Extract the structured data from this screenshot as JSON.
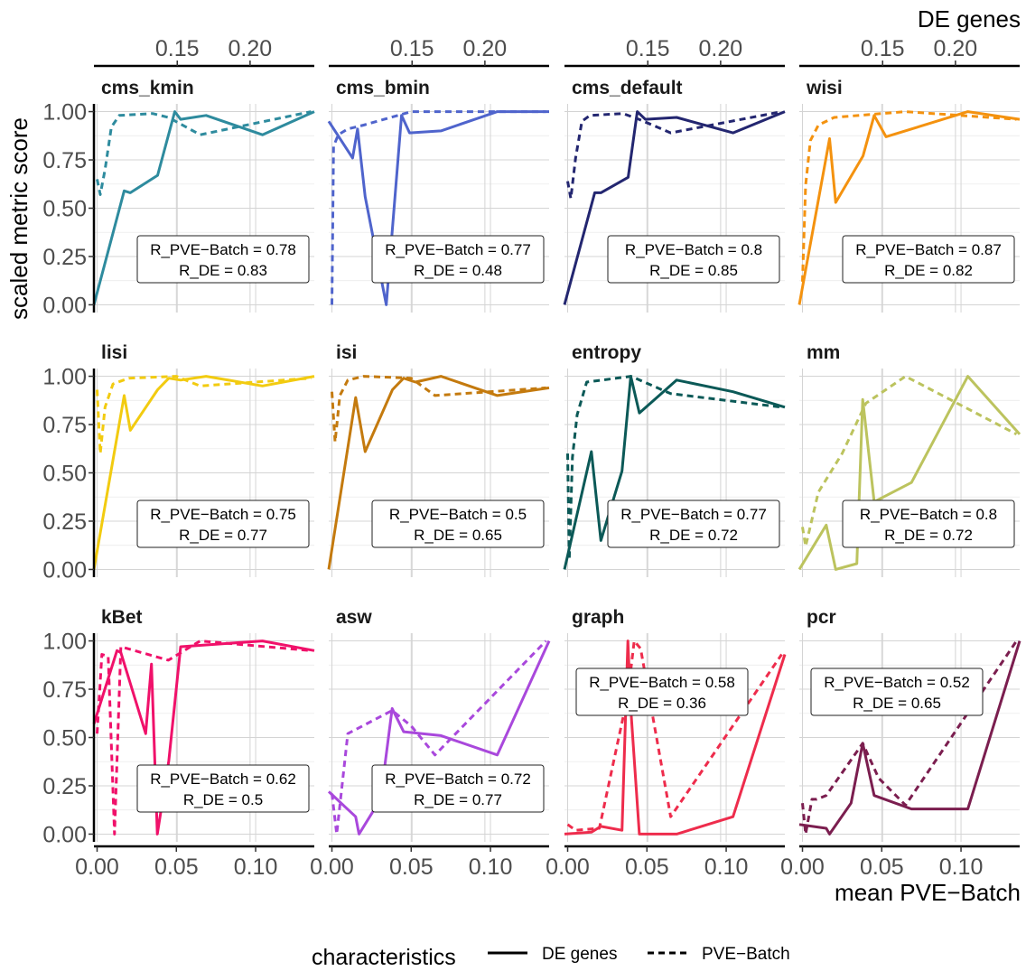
{
  "chart_data": {
    "type": "line",
    "x_axis": {
      "title": "mean PVE−Batch",
      "ticks": [
        0.0,
        0.05,
        0.1
      ],
      "tick_labels": [
        "0.00",
        "0.05",
        "0.10"
      ],
      "range": [
        -0.002,
        0.137
      ]
    },
    "x2_axis": {
      "title": "DE genes",
      "ticks": [
        0.15,
        0.2
      ],
      "tick_labels": [
        "0.15",
        "0.20"
      ],
      "range": [
        0.0928,
        0.2441
      ]
    },
    "y_axis": {
      "title": "scaled metric score",
      "ticks": [
        0,
        0.25,
        0.5,
        0.75,
        1
      ],
      "tick_labels": [
        "0.00",
        "0.25",
        "0.50",
        "0.75",
        "1.00"
      ],
      "range": [
        -0.04,
        1.04
      ]
    },
    "legend": {
      "title": "characteristics",
      "position": "bottom",
      "entries": [
        {
          "label": "DE genes",
          "linetype": "solid"
        },
        {
          "label": "PVE−Batch",
          "linetype": "dashed"
        }
      ]
    },
    "panels": [
      {
        "title": "cms_kmin",
        "color": "#2E8B9E",
        "de_genes": [
          [
            0.0928,
            0
          ],
          [
            0.1136,
            0.59
          ],
          [
            0.1178,
            0.58
          ],
          [
            0.1365,
            0.67
          ],
          [
            0.1483,
            1.0
          ],
          [
            0.1523,
            0.96
          ],
          [
            0.1698,
            0.98
          ],
          [
            0.2085,
            0.88
          ],
          [
            0.2441,
            1.0
          ]
        ],
        "pve_batch": [
          [
            0,
            0.65
          ],
          [
            0.002,
            0.57
          ],
          [
            0.005,
            0.7
          ],
          [
            0.009,
            0.92
          ],
          [
            0.014,
            0.98
          ],
          [
            0.035,
            0.99
          ],
          [
            0.045,
            0.97
          ],
          [
            0.065,
            0.88
          ],
          [
            0.135,
            1.0
          ]
        ],
        "annotation": {
          "r_pve": "R_PVE−Batch = 0.78",
          "r_de": "R_DE = 0.83"
        }
      },
      {
        "title": "cms_bmin",
        "color": "#4F64CC",
        "de_genes": [
          [
            0.0928,
            0.95
          ],
          [
            0.1092,
            0.76
          ],
          [
            0.1126,
            0.91
          ],
          [
            0.1178,
            0.56
          ],
          [
            0.1323,
            0.0
          ],
          [
            0.1428,
            0.98
          ],
          [
            0.1483,
            0.89
          ],
          [
            0.1698,
            0.9
          ],
          [
            0.2085,
            1.0
          ],
          [
            0.2441,
            1.0
          ]
        ],
        "pve_batch": [
          [
            0,
            0.0
          ],
          [
            0.001,
            0.82
          ],
          [
            0.004,
            0.88
          ],
          [
            0.01,
            0.91
          ],
          [
            0.02,
            0.93
          ],
          [
            0.05,
            1.0
          ],
          [
            0.135,
            1.0
          ]
        ],
        "annotation": {
          "r_pve": "R_PVE−Batch = 0.77",
          "r_de": "R_DE = 0.48"
        }
      },
      {
        "title": "cms_default",
        "color": "#232670",
        "de_genes": [
          [
            0.0928,
            0
          ],
          [
            0.1136,
            0.58
          ],
          [
            0.1178,
            0.58
          ],
          [
            0.1365,
            0.66
          ],
          [
            0.1428,
            1.0
          ],
          [
            0.1483,
            0.96
          ],
          [
            0.1698,
            0.97
          ],
          [
            0.2085,
            0.89
          ],
          [
            0.2441,
            1.0
          ]
        ],
        "pve_batch": [
          [
            0,
            0.64
          ],
          [
            0.002,
            0.55
          ],
          [
            0.005,
            0.76
          ],
          [
            0.009,
            0.95
          ],
          [
            0.014,
            0.98
          ],
          [
            0.035,
            0.99
          ],
          [
            0.045,
            0.96
          ],
          [
            0.065,
            0.89
          ],
          [
            0.135,
            1.0
          ]
        ],
        "annotation": {
          "r_pve": "R_PVE−Batch = 0.8",
          "r_de": "R_DE = 0.85"
        }
      },
      {
        "title": "wisi",
        "color": "#F4920F",
        "de_genes": [
          [
            0.0928,
            0
          ],
          [
            0.1136,
            0.86
          ],
          [
            0.1178,
            0.53
          ],
          [
            0.1365,
            0.77
          ],
          [
            0.1442,
            0.98
          ],
          [
            0.1523,
            0.87
          ],
          [
            0.1698,
            0.91
          ],
          [
            0.2085,
            1.0
          ],
          [
            0.2441,
            0.96
          ]
        ],
        "pve_batch": [
          [
            0,
            0.12
          ],
          [
            0.002,
            0.62
          ],
          [
            0.005,
            0.85
          ],
          [
            0.01,
            0.93
          ],
          [
            0.02,
            0.97
          ],
          [
            0.05,
            0.99
          ],
          [
            0.065,
            1.0
          ],
          [
            0.135,
            0.96
          ]
        ],
        "annotation": {
          "r_pve": "R_PVE−Batch = 0.87",
          "r_de": "R_DE = 0.82"
        }
      },
      {
        "title": "lisi",
        "color": "#F2CB10",
        "de_genes": [
          [
            0.0928,
            0
          ],
          [
            0.1136,
            0.9
          ],
          [
            0.1178,
            0.72
          ],
          [
            0.1365,
            0.93
          ],
          [
            0.1442,
            0.99
          ],
          [
            0.1523,
            0.98
          ],
          [
            0.1698,
            1.0
          ],
          [
            0.2085,
            0.95
          ],
          [
            0.2441,
            1.0
          ]
        ],
        "pve_batch": [
          [
            0,
            0.93
          ],
          [
            0.002,
            0.6
          ],
          [
            0.005,
            0.84
          ],
          [
            0.01,
            0.96
          ],
          [
            0.02,
            0.99
          ],
          [
            0.05,
            1.0
          ],
          [
            0.065,
            0.95
          ],
          [
            0.135,
            0.99
          ]
        ],
        "annotation": {
          "r_pve": "R_PVE−Batch = 0.75",
          "r_de": "R_DE = 0.77"
        }
      },
      {
        "title": "isi",
        "color": "#C47A0E",
        "de_genes": [
          [
            0.0928,
            0
          ],
          [
            0.1113,
            0.89
          ],
          [
            0.1178,
            0.61
          ],
          [
            0.1365,
            0.93
          ],
          [
            0.1442,
            0.99
          ],
          [
            0.1523,
            0.97
          ],
          [
            0.1698,
            1.0
          ],
          [
            0.2085,
            0.9
          ],
          [
            0.2441,
            0.94
          ]
        ],
        "pve_batch": [
          [
            0,
            0.92
          ],
          [
            0.002,
            0.66
          ],
          [
            0.005,
            0.9
          ],
          [
            0.01,
            0.98
          ],
          [
            0.02,
            1.0
          ],
          [
            0.05,
            0.99
          ],
          [
            0.065,
            0.9
          ],
          [
            0.135,
            0.94
          ]
        ],
        "annotation": {
          "r_pve": "R_PVE−Batch = 0.5",
          "r_de": "R_DE = 0.65"
        }
      },
      {
        "title": "entropy",
        "color": "#0B5957",
        "de_genes": [
          [
            0.0928,
            0
          ],
          [
            0.1113,
            0.61
          ],
          [
            0.1178,
            0.15
          ],
          [
            0.1323,
            0.51
          ],
          [
            0.1383,
            1.0
          ],
          [
            0.1442,
            0.81
          ],
          [
            0.1698,
            0.98
          ],
          [
            0.2085,
            0.92
          ],
          [
            0.2441,
            0.84
          ]
        ],
        "pve_batch": [
          [
            0,
            0.6
          ],
          [
            0.001,
            0.05
          ],
          [
            0.003,
            0.58
          ],
          [
            0.006,
            0.8
          ],
          [
            0.012,
            0.97
          ],
          [
            0.04,
            1.0
          ],
          [
            0.065,
            0.91
          ],
          [
            0.135,
            0.84
          ]
        ],
        "annotation": {
          "r_pve": "R_PVE−Batch = 0.77",
          "r_de": "R_DE = 0.72"
        }
      },
      {
        "title": "mm",
        "color": "#BCC35E",
        "de_genes": [
          [
            0.0928,
            0
          ],
          [
            0.1113,
            0.23
          ],
          [
            0.1178,
            0.0
          ],
          [
            0.1323,
            0.03
          ],
          [
            0.1363,
            0.88
          ],
          [
            0.1442,
            0.35
          ],
          [
            0.1698,
            0.45
          ],
          [
            0.2085,
            1.0
          ],
          [
            0.2441,
            0.7
          ]
        ],
        "pve_batch": [
          [
            0,
            0.22
          ],
          [
            0.002,
            0.12
          ],
          [
            0.01,
            0.4
          ],
          [
            0.025,
            0.6
          ],
          [
            0.04,
            0.86
          ],
          [
            0.065,
            1.0
          ],
          [
            0.135,
            0.7
          ]
        ],
        "annotation": {
          "r_pve": "R_PVE−Batch = 0.8",
          "r_de": "R_DE = 0.72"
        }
      },
      {
        "title": "kBet",
        "color": "#F0116A",
        "de_genes": [
          [
            0.0928,
            0.57
          ],
          [
            0.1086,
            0.95
          ],
          [
            0.1113,
            0.94
          ],
          [
            0.1283,
            0.52
          ],
          [
            0.1323,
            0.88
          ],
          [
            0.1363,
            0.0
          ],
          [
            0.1442,
            0.38
          ],
          [
            0.1523,
            0.97
          ],
          [
            0.2085,
            1.0
          ],
          [
            0.2441,
            0.95
          ]
        ],
        "pve_batch": [
          [
            0,
            0.52
          ],
          [
            0.003,
            0.93
          ],
          [
            0.007,
            0.92
          ],
          [
            0.011,
            0.0
          ],
          [
            0.015,
            0.97
          ],
          [
            0.045,
            0.9
          ],
          [
            0.065,
            1.0
          ],
          [
            0.135,
            0.95
          ]
        ],
        "annotation": {
          "r_pve": "R_PVE−Batch = 0.62",
          "r_de": "R_DE = 0.5"
        }
      },
      {
        "title": "asw",
        "color": "#A948DC",
        "de_genes": [
          [
            0.0928,
            0.22
          ],
          [
            0.1113,
            0.09
          ],
          [
            0.1136,
            0.0
          ],
          [
            0.1283,
            0.18
          ],
          [
            0.1363,
            0.65
          ],
          [
            0.1442,
            0.53
          ],
          [
            0.1698,
            0.51
          ],
          [
            0.2085,
            0.41
          ],
          [
            0.2441,
            1.0
          ]
        ],
        "pve_batch": [
          [
            0,
            0.21
          ],
          [
            0.003,
            0.0
          ],
          [
            0.01,
            0.52
          ],
          [
            0.038,
            0.64
          ],
          [
            0.05,
            0.56
          ],
          [
            0.065,
            0.41
          ],
          [
            0.135,
            1.0
          ]
        ],
        "annotation": {
          "r_pve": "R_PVE−Batch = 0.72",
          "r_de": "R_DE = 0.77"
        }
      },
      {
        "title": "graph",
        "color": "#EE2C4C",
        "de_genes": [
          [
            0.0928,
            0.0
          ],
          [
            0.1113,
            0.01
          ],
          [
            0.1178,
            0.04
          ],
          [
            0.1323,
            0.02
          ],
          [
            0.1363,
            1.0
          ],
          [
            0.1383,
            0.65
          ],
          [
            0.1442,
            0.0
          ],
          [
            0.1698,
            0.0
          ],
          [
            0.2085,
            0.09
          ],
          [
            0.2441,
            0.93
          ]
        ],
        "pve_batch": [
          [
            0,
            0.05
          ],
          [
            0.005,
            0.02
          ],
          [
            0.02,
            0.03
          ],
          [
            0.038,
            0.72
          ],
          [
            0.042,
            1.0
          ],
          [
            0.046,
            0.96
          ],
          [
            0.065,
            0.09
          ],
          [
            0.135,
            0.93
          ]
        ],
        "annotation": {
          "r_pve": "R_PVE−Batch = 0.58",
          "r_de": "R_DE = 0.36"
        }
      },
      {
        "title": "pcr",
        "color": "#7B1E4F",
        "de_genes": [
          [
            0.0928,
            0.05
          ],
          [
            0.1113,
            0.03
          ],
          [
            0.1136,
            0.0
          ],
          [
            0.1283,
            0.16
          ],
          [
            0.1363,
            0.47
          ],
          [
            0.1442,
            0.2
          ],
          [
            0.1698,
            0.13
          ],
          [
            0.2085,
            0.13
          ],
          [
            0.2441,
            1.0
          ]
        ],
        "pve_batch": [
          [
            0,
            0.16
          ],
          [
            0.002,
            0.0
          ],
          [
            0.006,
            0.18
          ],
          [
            0.009,
            0.18
          ],
          [
            0.015,
            0.2
          ],
          [
            0.038,
            0.47
          ],
          [
            0.048,
            0.29
          ],
          [
            0.065,
            0.15
          ],
          [
            0.135,
            1.0
          ]
        ],
        "annotation": {
          "r_pve": "R_PVE−Batch = 0.52",
          "r_de": "R_DE = 0.65"
        }
      }
    ]
  }
}
